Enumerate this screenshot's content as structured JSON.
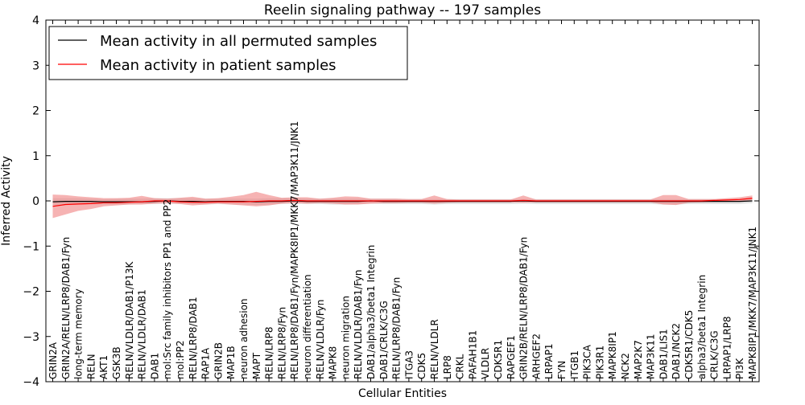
{
  "chart_data": {
    "type": "line",
    "title": "Reelin signaling pathway -- 197 samples",
    "xlabel": "Cellular Entities",
    "ylabel": "Inferred Activity",
    "ylim": [
      -4,
      4
    ],
    "yticks": [
      -4,
      -3,
      -2,
      -1,
      0,
      1,
      2,
      3,
      4
    ],
    "ytick_labels": [
      "−4",
      "−3",
      "−2",
      "−1",
      "0",
      "1",
      "2",
      "3",
      "4"
    ],
    "legend_position": "top-left",
    "categories": [
      "GRIN2A",
      "GRIN2A/RELN/LRP8/DAB1/Fyn",
      "long-term memory",
      "RELN",
      "AKT1",
      "GSK3B",
      "RELN/VLDLR/DAB1/P13K",
      "RELN/VLDLR/DAB1",
      "DAB1",
      "mol:Src family inhibitors PP1 and PP2",
      "mol:PP2",
      "RELN/LRP8/DAB1",
      "RAP1A",
      "GRIN2B",
      "MAP1B",
      "neuron adhesion",
      "MAPT",
      "RELN/LRP8",
      "RELN/LRP8/Fyn",
      "RELN/LRP8/DAB1/Fyn/MAPK8IP1/MKK7/MAP3K11/JNK1",
      "neuron differentiation",
      "RELN/VLDLR/Fyn",
      "MAPK8",
      "neuron migration",
      "RELN/VLDLR/DAB1/Fyn",
      "DAB1/alpha3/beta1 Integrin",
      "DAB1/CRLK/C3G",
      "RELN/LRP8/DAB1/Fyn",
      "ITGA3",
      "CDK5",
      "RELN/VLDLR",
      "LRP8",
      "CRKL",
      "PAFAH1B1",
      "VLDLR",
      "CDK5R1",
      "RAPGEF1",
      "GRIN2B/RELN/LRP8/DAB1/Fyn",
      "ARHGEF2",
      "LRPAP1",
      "FYN",
      "ITGB1",
      "PIK3CA",
      "PIK3R1",
      "MAPK8IP1",
      "NCK2",
      "MAP2K7",
      "MAP3K11",
      "DAB1/LIS1",
      "DAB1/NCK2",
      "CDK5R1/CDK5",
      "alpha3/beta1 Integrin",
      "CRLK/C3G",
      "LRPAP1/LRP8",
      "PI3K",
      "MAPK8IP1/MKK7/MAP3K11/JNK1"
    ],
    "series": [
      {
        "name": "Mean activity in all permuted samples",
        "color": "#000000",
        "values": [
          -0.02,
          -0.01,
          -0.01,
          -0.01,
          -0.02,
          -0.02,
          -0.02,
          -0.02,
          -0.01,
          0.0,
          -0.01,
          -0.01,
          -0.02,
          -0.01,
          -0.01,
          -0.01,
          -0.02,
          -0.01,
          -0.01,
          0.0,
          -0.01,
          -0.01,
          -0.01,
          -0.01,
          -0.01,
          0.0,
          -0.01,
          -0.01,
          -0.01,
          -0.01,
          -0.01,
          -0.01,
          -0.01,
          -0.01,
          -0.01,
          -0.01,
          -0.01,
          0.0,
          -0.01,
          -0.01,
          -0.01,
          -0.01,
          -0.01,
          -0.01,
          -0.01,
          -0.01,
          -0.01,
          -0.01,
          -0.01,
          -0.01,
          -0.01,
          -0.01,
          -0.01,
          -0.01,
          -0.01,
          0.0
        ],
        "band_upper": [
          0.06,
          0.06,
          0.06,
          0.05,
          0.04,
          0.05,
          0.05,
          0.05,
          0.06,
          0.06,
          0.06,
          0.06,
          0.05,
          0.05,
          0.05,
          0.05,
          0.05,
          0.06,
          0.06,
          0.06,
          0.05,
          0.05,
          0.05,
          0.05,
          0.05,
          0.05,
          0.05,
          0.05,
          0.04,
          0.04,
          0.04,
          0.04,
          0.04,
          0.04,
          0.04,
          0.04,
          0.04,
          0.04,
          0.04,
          0.04,
          0.04,
          0.04,
          0.04,
          0.04,
          0.04,
          0.04,
          0.04,
          0.04,
          0.04,
          0.04,
          0.04,
          0.04,
          0.04,
          0.04,
          0.04,
          0.05
        ],
        "band_lower": [
          -0.1,
          -0.09,
          -0.08,
          -0.07,
          -0.08,
          -0.08,
          -0.08,
          -0.07,
          -0.07,
          -0.06,
          -0.07,
          -0.07,
          -0.08,
          -0.07,
          -0.08,
          -0.08,
          -0.09,
          -0.08,
          -0.07,
          -0.06,
          -0.07,
          -0.07,
          -0.08,
          -0.08,
          -0.07,
          -0.06,
          -0.07,
          -0.07,
          -0.07,
          -0.07,
          -0.08,
          -0.07,
          -0.07,
          -0.07,
          -0.07,
          -0.07,
          -0.07,
          -0.06,
          -0.07,
          -0.07,
          -0.07,
          -0.07,
          -0.07,
          -0.07,
          -0.07,
          -0.07,
          -0.07,
          -0.07,
          -0.08,
          -0.08,
          -0.07,
          -0.07,
          -0.07,
          -0.07,
          -0.07,
          -0.05
        ]
      },
      {
        "name": "Mean activity in patient samples",
        "color": "#ff0000",
        "values": [
          -0.12,
          -0.08,
          -0.07,
          -0.06,
          -0.04,
          -0.04,
          -0.03,
          -0.02,
          0.0,
          0.0,
          -0.02,
          -0.03,
          -0.03,
          -0.02,
          -0.02,
          -0.02,
          -0.01,
          0.0,
          0.0,
          0.01,
          0.0,
          0.0,
          0.0,
          0.0,
          0.0,
          0.0,
          0.0,
          0.0,
          0.0,
          0.0,
          0.0,
          0.0,
          0.0,
          0.0,
          0.0,
          0.0,
          0.0,
          0.01,
          0.0,
          0.0,
          0.0,
          0.0,
          0.0,
          0.0,
          0.0,
          0.0,
          0.0,
          0.0,
          0.0,
          0.0,
          0.0,
          0.0,
          0.01,
          0.02,
          0.03,
          0.06
        ],
        "band_upper": [
          0.14,
          0.13,
          0.1,
          0.08,
          0.06,
          0.06,
          0.07,
          0.11,
          0.06,
          0.05,
          0.07,
          0.09,
          0.05,
          0.06,
          0.09,
          0.13,
          0.2,
          0.13,
          0.07,
          0.08,
          0.08,
          0.05,
          0.07,
          0.1,
          0.09,
          0.05,
          0.05,
          0.05,
          0.04,
          0.04,
          0.12,
          0.04,
          0.03,
          0.03,
          0.03,
          0.03,
          0.03,
          0.12,
          0.03,
          0.03,
          0.03,
          0.03,
          0.03,
          0.03,
          0.03,
          0.03,
          0.03,
          0.03,
          0.13,
          0.13,
          0.04,
          0.04,
          0.04,
          0.06,
          0.08,
          0.12
        ],
        "band_lower": [
          -0.38,
          -0.3,
          -0.22,
          -0.18,
          -0.12,
          -0.1,
          -0.08,
          -0.08,
          -0.06,
          -0.05,
          -0.07,
          -0.1,
          -0.08,
          -0.06,
          -0.08,
          -0.1,
          -0.12,
          -0.1,
          -0.06,
          -0.05,
          -0.06,
          -0.05,
          -0.06,
          -0.08,
          -0.08,
          -0.06,
          -0.05,
          -0.05,
          -0.04,
          -0.04,
          -0.06,
          -0.04,
          -0.03,
          -0.03,
          -0.03,
          -0.03,
          -0.03,
          -0.04,
          -0.03,
          -0.03,
          -0.03,
          -0.03,
          -0.03,
          -0.03,
          -0.03,
          -0.03,
          -0.03,
          -0.03,
          -0.08,
          -0.09,
          -0.04,
          -0.03,
          -0.02,
          -0.02,
          -0.01,
          0.02
        ]
      }
    ]
  }
}
